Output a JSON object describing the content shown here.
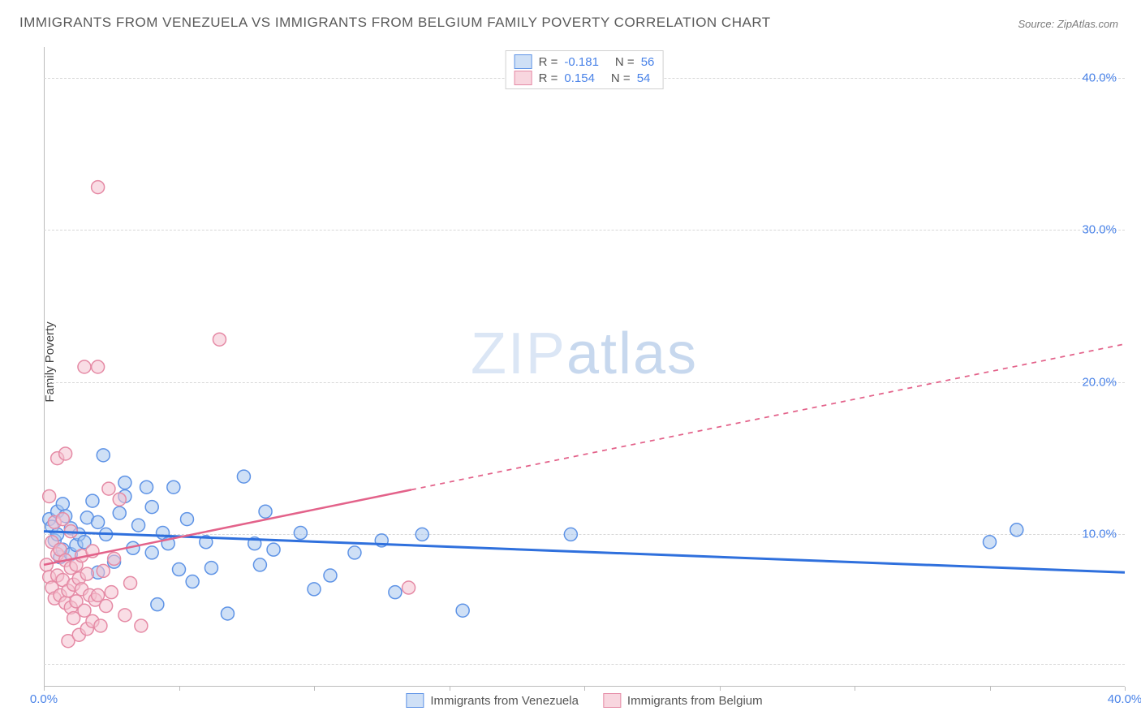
{
  "title": "IMMIGRANTS FROM VENEZUELA VS IMMIGRANTS FROM BELGIUM FAMILY POVERTY CORRELATION CHART",
  "source": "Source: ZipAtlas.com",
  "ylabel": "Family Poverty",
  "watermark": {
    "zip": "ZIP",
    "atlas": "atlas"
  },
  "chart": {
    "type": "scatter",
    "xlim": [
      0,
      40
    ],
    "ylim": [
      0,
      42
    ],
    "xtick_positions": [
      0,
      5,
      10,
      15,
      20,
      25,
      30,
      35,
      40
    ],
    "xtick_labels": {
      "0": "0.0%",
      "40": "40.0%"
    },
    "ytick_positions": [
      10,
      20,
      30,
      40
    ],
    "ytick_labels": {
      "10": "10.0%",
      "20": "20.0%",
      "30": "30.0%",
      "40": "40.0%"
    },
    "grid_positions": [
      1.5,
      10,
      20,
      30,
      40
    ],
    "grid_color": "#d8d8d8",
    "background_color": "#ffffff",
    "series": [
      {
        "name": "Immigrants from Venezuela",
        "color_fill": "#a7c6ee",
        "color_stroke": "#5e93e6",
        "marker_radius": 8,
        "trend": {
          "y_at_x0": 10.2,
          "y_at_x40": 7.5,
          "color": "#2f70dd",
          "width": 3,
          "solid_portion": 1.0
        },
        "points": [
          [
            0.2,
            11.0
          ],
          [
            0.3,
            10.5
          ],
          [
            0.4,
            9.6
          ],
          [
            0.5,
            10.0
          ],
          [
            0.5,
            11.5
          ],
          [
            0.6,
            8.5
          ],
          [
            0.7,
            12.0
          ],
          [
            0.7,
            9.0
          ],
          [
            0.8,
            11.2
          ],
          [
            1.0,
            10.4
          ],
          [
            1.0,
            8.7
          ],
          [
            1.2,
            9.3
          ],
          [
            1.3,
            10.0
          ],
          [
            1.5,
            9.5
          ],
          [
            1.6,
            11.1
          ],
          [
            1.8,
            12.2
          ],
          [
            2.0,
            10.8
          ],
          [
            2.0,
            7.5
          ],
          [
            2.2,
            15.2
          ],
          [
            2.3,
            10.0
          ],
          [
            2.6,
            8.2
          ],
          [
            2.8,
            11.4
          ],
          [
            3.0,
            13.4
          ],
          [
            3.0,
            12.5
          ],
          [
            3.3,
            9.1
          ],
          [
            3.5,
            10.6
          ],
          [
            3.8,
            13.1
          ],
          [
            4.0,
            11.8
          ],
          [
            4.0,
            8.8
          ],
          [
            4.2,
            5.4
          ],
          [
            4.4,
            10.1
          ],
          [
            4.6,
            9.4
          ],
          [
            4.8,
            13.1
          ],
          [
            5.0,
            7.7
          ],
          [
            5.3,
            11.0
          ],
          [
            5.5,
            6.9
          ],
          [
            6.0,
            9.5
          ],
          [
            6.2,
            7.8
          ],
          [
            6.8,
            4.8
          ],
          [
            7.4,
            13.8
          ],
          [
            7.8,
            9.4
          ],
          [
            8.0,
            8.0
          ],
          [
            8.2,
            11.5
          ],
          [
            8.5,
            9.0
          ],
          [
            9.5,
            10.1
          ],
          [
            10.0,
            6.4
          ],
          [
            10.6,
            7.3
          ],
          [
            11.5,
            8.8
          ],
          [
            12.5,
            9.6
          ],
          [
            13.0,
            6.2
          ],
          [
            14.0,
            10.0
          ],
          [
            15.5,
            5.0
          ],
          [
            19.5,
            10.0
          ],
          [
            35.0,
            9.5
          ],
          [
            36.0,
            10.3
          ]
        ]
      },
      {
        "name": "Immigrants from Belgium",
        "color_fill": "#f4c1cf",
        "color_stroke": "#e58aa5",
        "marker_radius": 8,
        "trend": {
          "y_at_x0": 8.0,
          "y_at_x40": 22.5,
          "color": "#e3628a",
          "width": 2.5,
          "solid_portion": 0.34
        },
        "points": [
          [
            0.1,
            8.0
          ],
          [
            0.2,
            7.2
          ],
          [
            0.2,
            12.5
          ],
          [
            0.3,
            6.5
          ],
          [
            0.3,
            9.5
          ],
          [
            0.4,
            5.8
          ],
          [
            0.4,
            10.8
          ],
          [
            0.5,
            8.7
          ],
          [
            0.5,
            15.0
          ],
          [
            0.5,
            7.3
          ],
          [
            0.6,
            6.0
          ],
          [
            0.6,
            9.0
          ],
          [
            0.7,
            11.0
          ],
          [
            0.7,
            7.0
          ],
          [
            0.8,
            5.5
          ],
          [
            0.8,
            15.3
          ],
          [
            0.8,
            8.3
          ],
          [
            0.9,
            6.3
          ],
          [
            0.9,
            3.0
          ],
          [
            1.0,
            7.8
          ],
          [
            1.0,
            5.2
          ],
          [
            1.0,
            10.2
          ],
          [
            1.1,
            6.7
          ],
          [
            1.1,
            4.5
          ],
          [
            1.2,
            8.0
          ],
          [
            1.2,
            5.6
          ],
          [
            1.3,
            7.1
          ],
          [
            1.3,
            3.4
          ],
          [
            1.4,
            6.4
          ],
          [
            1.4,
            8.6
          ],
          [
            1.5,
            5.0
          ],
          [
            1.5,
            21.0
          ],
          [
            1.6,
            7.4
          ],
          [
            1.6,
            3.8
          ],
          [
            1.7,
            6.0
          ],
          [
            1.8,
            8.9
          ],
          [
            1.8,
            4.3
          ],
          [
            1.9,
            5.7
          ],
          [
            2.0,
            21.0
          ],
          [
            2.0,
            6.0
          ],
          [
            2.0,
            32.8
          ],
          [
            2.1,
            4.0
          ],
          [
            2.2,
            7.6
          ],
          [
            2.3,
            5.3
          ],
          [
            2.4,
            13.0
          ],
          [
            2.5,
            6.2
          ],
          [
            2.6,
            8.4
          ],
          [
            2.8,
            12.3
          ],
          [
            3.0,
            4.7
          ],
          [
            3.2,
            6.8
          ],
          [
            3.6,
            4.0
          ],
          [
            6.5,
            22.8
          ],
          [
            13.5,
            6.5
          ]
        ]
      }
    ]
  },
  "legend_top": [
    {
      "swatch": "blue",
      "r_label": "R =",
      "r": "-0.181",
      "n_label": "N =",
      "n": "56"
    },
    {
      "swatch": "pink",
      "r_label": "R =",
      "r": "0.154",
      "n_label": "N =",
      "n": "54"
    }
  ],
  "legend_bottom": [
    {
      "swatch": "blue",
      "label": "Immigrants from Venezuela"
    },
    {
      "swatch": "pink",
      "label": "Immigrants from Belgium"
    }
  ]
}
